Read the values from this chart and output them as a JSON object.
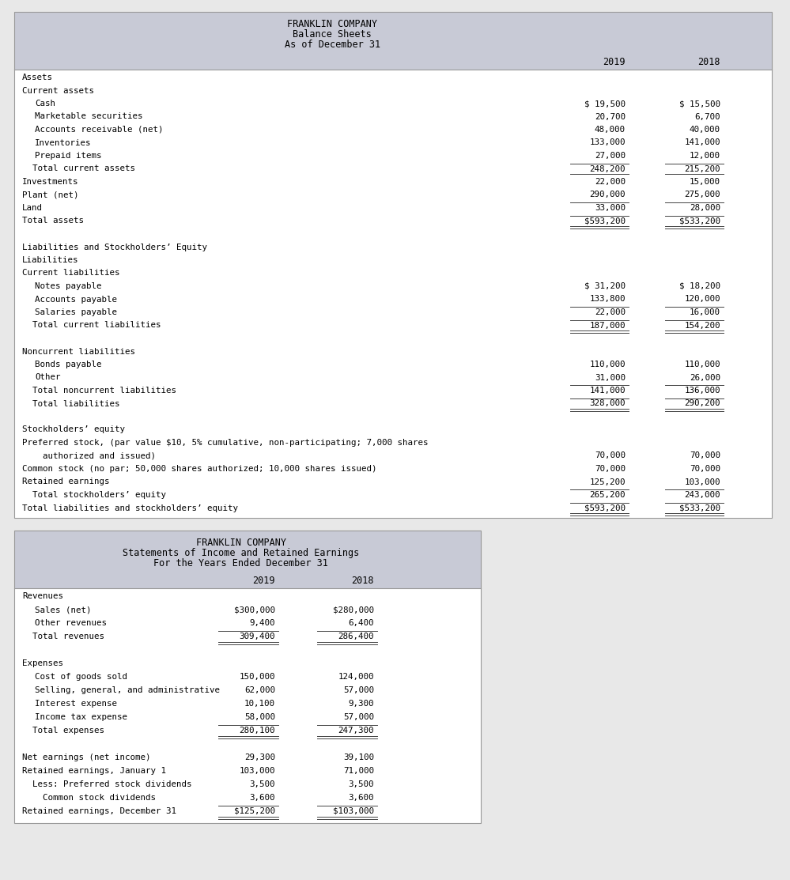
{
  "bg_color": "#e8e8e8",
  "header_bg": "#c8cad6",
  "body_bg": "#ffffff",
  "text_color": "#000000",
  "border_color": "#999999",
  "line_color": "#444444",
  "font_family": "DejaVu Sans Mono",
  "balance_sheet": {
    "title1": "FRANKLIN COMPANY",
    "title2": "Balance Sheets",
    "title3": "As of December 31",
    "col_headers": [
      "2019",
      "2018"
    ],
    "rows": [
      {
        "label": "Assets",
        "v2019": "",
        "v2018": "",
        "indent": 0,
        "top_border": false,
        "underline": false,
        "double_underline": false
      },
      {
        "label": "Current assets",
        "v2019": "",
        "v2018": "",
        "indent": 0,
        "top_border": false,
        "underline": false,
        "double_underline": false
      },
      {
        "label": "Cash",
        "v2019": "$ 19,500",
        "v2018": "$ 15,500",
        "indent": 1,
        "top_border": false,
        "underline": false,
        "double_underline": false
      },
      {
        "label": "Marketable securities",
        "v2019": "20,700",
        "v2018": "6,700",
        "indent": 1,
        "top_border": false,
        "underline": false,
        "double_underline": false
      },
      {
        "label": "Accounts receivable (net)",
        "v2019": "48,000",
        "v2018": "40,000",
        "indent": 1,
        "top_border": false,
        "underline": false,
        "double_underline": false
      },
      {
        "label": "Inventories",
        "v2019": "133,000",
        "v2018": "141,000",
        "indent": 1,
        "top_border": false,
        "underline": false,
        "double_underline": false
      },
      {
        "label": "Prepaid items",
        "v2019": "27,000",
        "v2018": "12,000",
        "indent": 1,
        "top_border": false,
        "underline": false,
        "double_underline": false
      },
      {
        "label": "  Total current assets",
        "v2019": "248,200",
        "v2018": "215,200",
        "indent": 0,
        "top_border": true,
        "underline": true,
        "double_underline": false
      },
      {
        "label": "Investments",
        "v2019": "22,000",
        "v2018": "15,000",
        "indent": 0,
        "top_border": false,
        "underline": false,
        "double_underline": false
      },
      {
        "label": "Plant (net)",
        "v2019": "290,000",
        "v2018": "275,000",
        "indent": 0,
        "top_border": false,
        "underline": false,
        "double_underline": false
      },
      {
        "label": "Land",
        "v2019": "33,000",
        "v2018": "28,000",
        "indent": 0,
        "top_border": true,
        "underline": false,
        "double_underline": false
      },
      {
        "label": "Total assets",
        "v2019": "$593,200",
        "v2018": "$533,200",
        "indent": 0,
        "top_border": true,
        "underline": false,
        "double_underline": true
      },
      {
        "label": "",
        "v2019": "",
        "v2018": "",
        "indent": 0,
        "top_border": false,
        "underline": false,
        "double_underline": false
      },
      {
        "label": "Liabilities and Stockholders’ Equity",
        "v2019": "",
        "v2018": "",
        "indent": 0,
        "top_border": false,
        "underline": false,
        "double_underline": false
      },
      {
        "label": "Liabilities",
        "v2019": "",
        "v2018": "",
        "indent": 0,
        "top_border": false,
        "underline": false,
        "double_underline": false
      },
      {
        "label": "Current liabilities",
        "v2019": "",
        "v2018": "",
        "indent": 0,
        "top_border": false,
        "underline": false,
        "double_underline": false
      },
      {
        "label": "Notes payable",
        "v2019": "$ 31,200",
        "v2018": "$ 18,200",
        "indent": 1,
        "top_border": false,
        "underline": false,
        "double_underline": false
      },
      {
        "label": "Accounts payable",
        "v2019": "133,800",
        "v2018": "120,000",
        "indent": 1,
        "top_border": false,
        "underline": false,
        "double_underline": false
      },
      {
        "label": "Salaries payable",
        "v2019": "22,000",
        "v2018": "16,000",
        "indent": 1,
        "top_border": true,
        "underline": false,
        "double_underline": false
      },
      {
        "label": "  Total current liabilities",
        "v2019": "187,000",
        "v2018": "154,200",
        "indent": 0,
        "top_border": true,
        "underline": false,
        "double_underline": true
      },
      {
        "label": "",
        "v2019": "",
        "v2018": "",
        "indent": 0,
        "top_border": false,
        "underline": false,
        "double_underline": false
      },
      {
        "label": "Noncurrent liabilities",
        "v2019": "",
        "v2018": "",
        "indent": 0,
        "top_border": false,
        "underline": false,
        "double_underline": false
      },
      {
        "label": "Bonds payable",
        "v2019": "110,000",
        "v2018": "110,000",
        "indent": 1,
        "top_border": false,
        "underline": false,
        "double_underline": false
      },
      {
        "label": "Other",
        "v2019": "31,000",
        "v2018": "26,000",
        "indent": 1,
        "top_border": false,
        "underline": false,
        "double_underline": false
      },
      {
        "label": "  Total noncurrent liabilities",
        "v2019": "141,000",
        "v2018": "136,000",
        "indent": 0,
        "top_border": true,
        "underline": false,
        "double_underline": false
      },
      {
        "label": "  Total liabilities",
        "v2019": "328,000",
        "v2018": "290,200",
        "indent": 0,
        "top_border": true,
        "underline": false,
        "double_underline": true
      },
      {
        "label": "",
        "v2019": "",
        "v2018": "",
        "indent": 0,
        "top_border": false,
        "underline": false,
        "double_underline": false
      },
      {
        "label": "Stockholders’ equity",
        "v2019": "",
        "v2018": "",
        "indent": 0,
        "top_border": false,
        "underline": false,
        "double_underline": false
      },
      {
        "label": "Preferred stock, (par value $10, 5% cumulative, non-participating; 7,000 shares",
        "v2019": "",
        "v2018": "",
        "indent": 0,
        "top_border": false,
        "underline": false,
        "double_underline": false
      },
      {
        "label": "    authorized and issued)",
        "v2019": "70,000",
        "v2018": "70,000",
        "indent": 0,
        "top_border": false,
        "underline": false,
        "double_underline": false
      },
      {
        "label": "Common stock (no par; 50,000 shares authorized; 10,000 shares issued)",
        "v2019": "70,000",
        "v2018": "70,000",
        "indent": 0,
        "top_border": false,
        "underline": false,
        "double_underline": false
      },
      {
        "label": "Retained earnings",
        "v2019": "125,200",
        "v2018": "103,000",
        "indent": 0,
        "top_border": false,
        "underline": false,
        "double_underline": false
      },
      {
        "label": "  Total stockholders’ equity",
        "v2019": "265,200",
        "v2018": "243,000",
        "indent": 0,
        "top_border": true,
        "underline": false,
        "double_underline": false
      },
      {
        "label": "Total liabilities and stockholders’ equity",
        "v2019": "$593,200",
        "v2018": "$533,200",
        "indent": 0,
        "top_border": true,
        "underline": false,
        "double_underline": true
      }
    ]
  },
  "income_statement": {
    "title1": "FRANKLIN COMPANY",
    "title2": "Statements of Income and Retained Earnings",
    "title3": "For the Years Ended December 31",
    "col_headers": [
      "2019",
      "2018"
    ],
    "rows": [
      {
        "label": "Revenues",
        "v2019": "",
        "v2018": "",
        "indent": 0,
        "top_border": false,
        "double_underline": false
      },
      {
        "label": "Sales (net)",
        "v2019": "$300,000",
        "v2018": "$280,000",
        "indent": 1,
        "top_border": false,
        "double_underline": false
      },
      {
        "label": "Other revenues",
        "v2019": "9,400",
        "v2018": "6,400",
        "indent": 1,
        "top_border": false,
        "double_underline": false
      },
      {
        "label": "  Total revenues",
        "v2019": "309,400",
        "v2018": "286,400",
        "indent": 0,
        "top_border": true,
        "double_underline": true
      },
      {
        "label": "",
        "v2019": "",
        "v2018": "",
        "indent": 0,
        "top_border": false,
        "double_underline": false
      },
      {
        "label": "Expenses",
        "v2019": "",
        "v2018": "",
        "indent": 0,
        "top_border": false,
        "double_underline": false
      },
      {
        "label": "Cost of goods sold",
        "v2019": "150,000",
        "v2018": "124,000",
        "indent": 1,
        "top_border": false,
        "double_underline": false
      },
      {
        "label": "Selling, general, and administrative",
        "v2019": "62,000",
        "v2018": "57,000",
        "indent": 1,
        "top_border": false,
        "double_underline": false
      },
      {
        "label": "Interest expense",
        "v2019": "10,100",
        "v2018": "9,300",
        "indent": 1,
        "top_border": false,
        "double_underline": false
      },
      {
        "label": "Income tax expense",
        "v2019": "58,000",
        "v2018": "57,000",
        "indent": 1,
        "top_border": false,
        "double_underline": false
      },
      {
        "label": "  Total expenses",
        "v2019": "280,100",
        "v2018": "247,300",
        "indent": 0,
        "top_border": true,
        "double_underline": true
      },
      {
        "label": "",
        "v2019": "",
        "v2018": "",
        "indent": 0,
        "top_border": false,
        "double_underline": false
      },
      {
        "label": "Net earnings (net income)",
        "v2019": "29,300",
        "v2018": "39,100",
        "indent": 0,
        "top_border": false,
        "double_underline": false
      },
      {
        "label": "Retained earnings, January 1",
        "v2019": "103,000",
        "v2018": "71,000",
        "indent": 0,
        "top_border": false,
        "double_underline": false
      },
      {
        "label": "  Less: Preferred stock dividends",
        "v2019": "3,500",
        "v2018": "3,500",
        "indent": 0,
        "top_border": false,
        "double_underline": false
      },
      {
        "label": "    Common stock dividends",
        "v2019": "3,600",
        "v2018": "3,600",
        "indent": 0,
        "top_border": false,
        "double_underline": false
      },
      {
        "label": "Retained earnings, December 31",
        "v2019": "$125,200",
        "v2018": "$103,000",
        "indent": 0,
        "top_border": true,
        "double_underline": true
      }
    ]
  }
}
